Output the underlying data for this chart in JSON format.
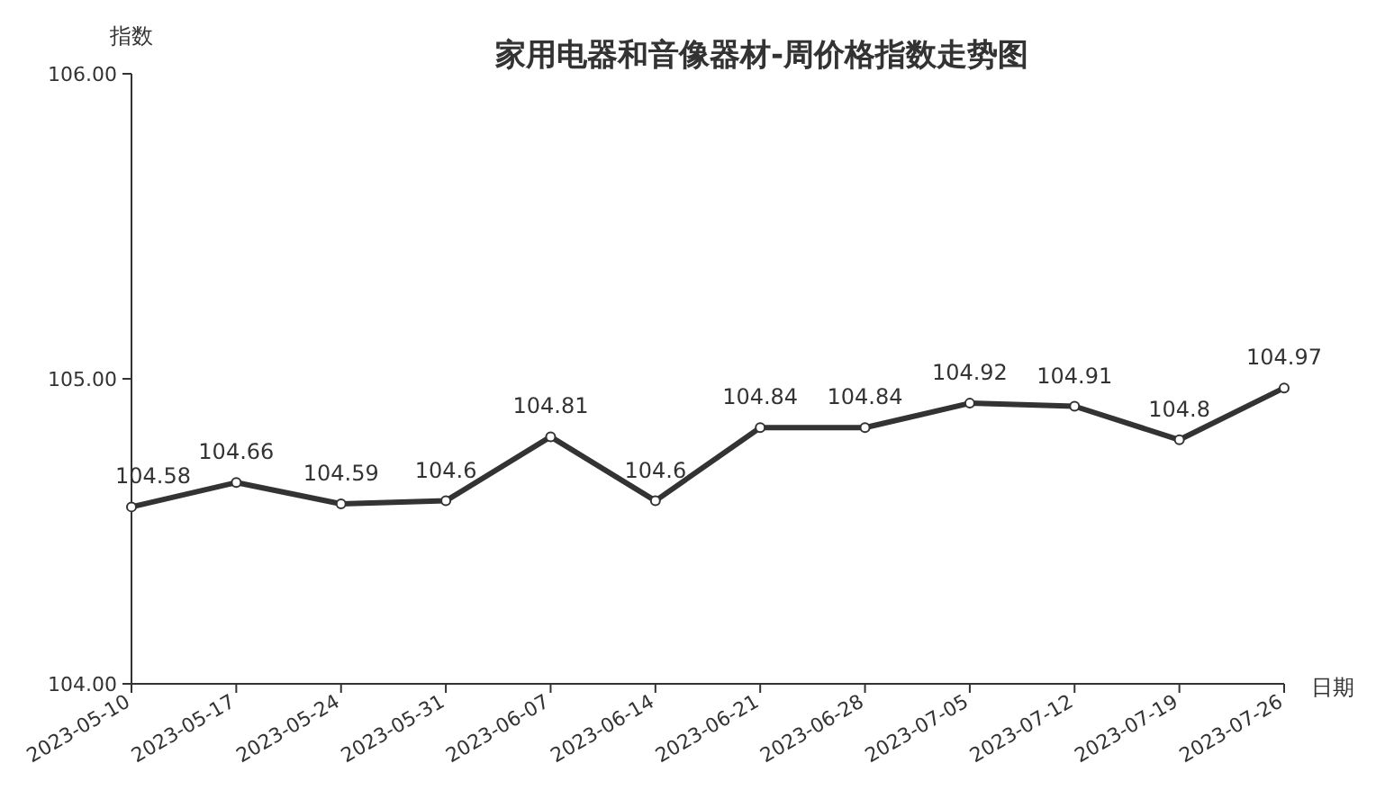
{
  "chart_data": {
    "type": "line",
    "title": "家用电器和音像器材-周价格指数走势图",
    "xlabel": "日期",
    "ylabel": "指数",
    "categories": [
      "2023-05-10",
      "2023-05-17",
      "2023-05-24",
      "2023-05-31",
      "2023-06-07",
      "2023-06-14",
      "2023-06-21",
      "2023-06-28",
      "2023-07-05",
      "2023-07-12",
      "2023-07-19",
      "2023-07-26"
    ],
    "series": [
      {
        "color": "#333333",
        "values": [
          104.58,
          104.66,
          104.59,
          104.6,
          104.81,
          104.6,
          104.84,
          104.84,
          104.92,
          104.91,
          104.8,
          104.97
        ]
      }
    ],
    "ylim": [
      104,
      106
    ],
    "yticks": [
      {
        "value": 104,
        "label": "104.00"
      },
      {
        "value": 105,
        "label": "105.00"
      },
      {
        "value": 106,
        "label": "106.00"
      }
    ],
    "data_labels": true,
    "marker": "circle",
    "line_style": "solid"
  }
}
